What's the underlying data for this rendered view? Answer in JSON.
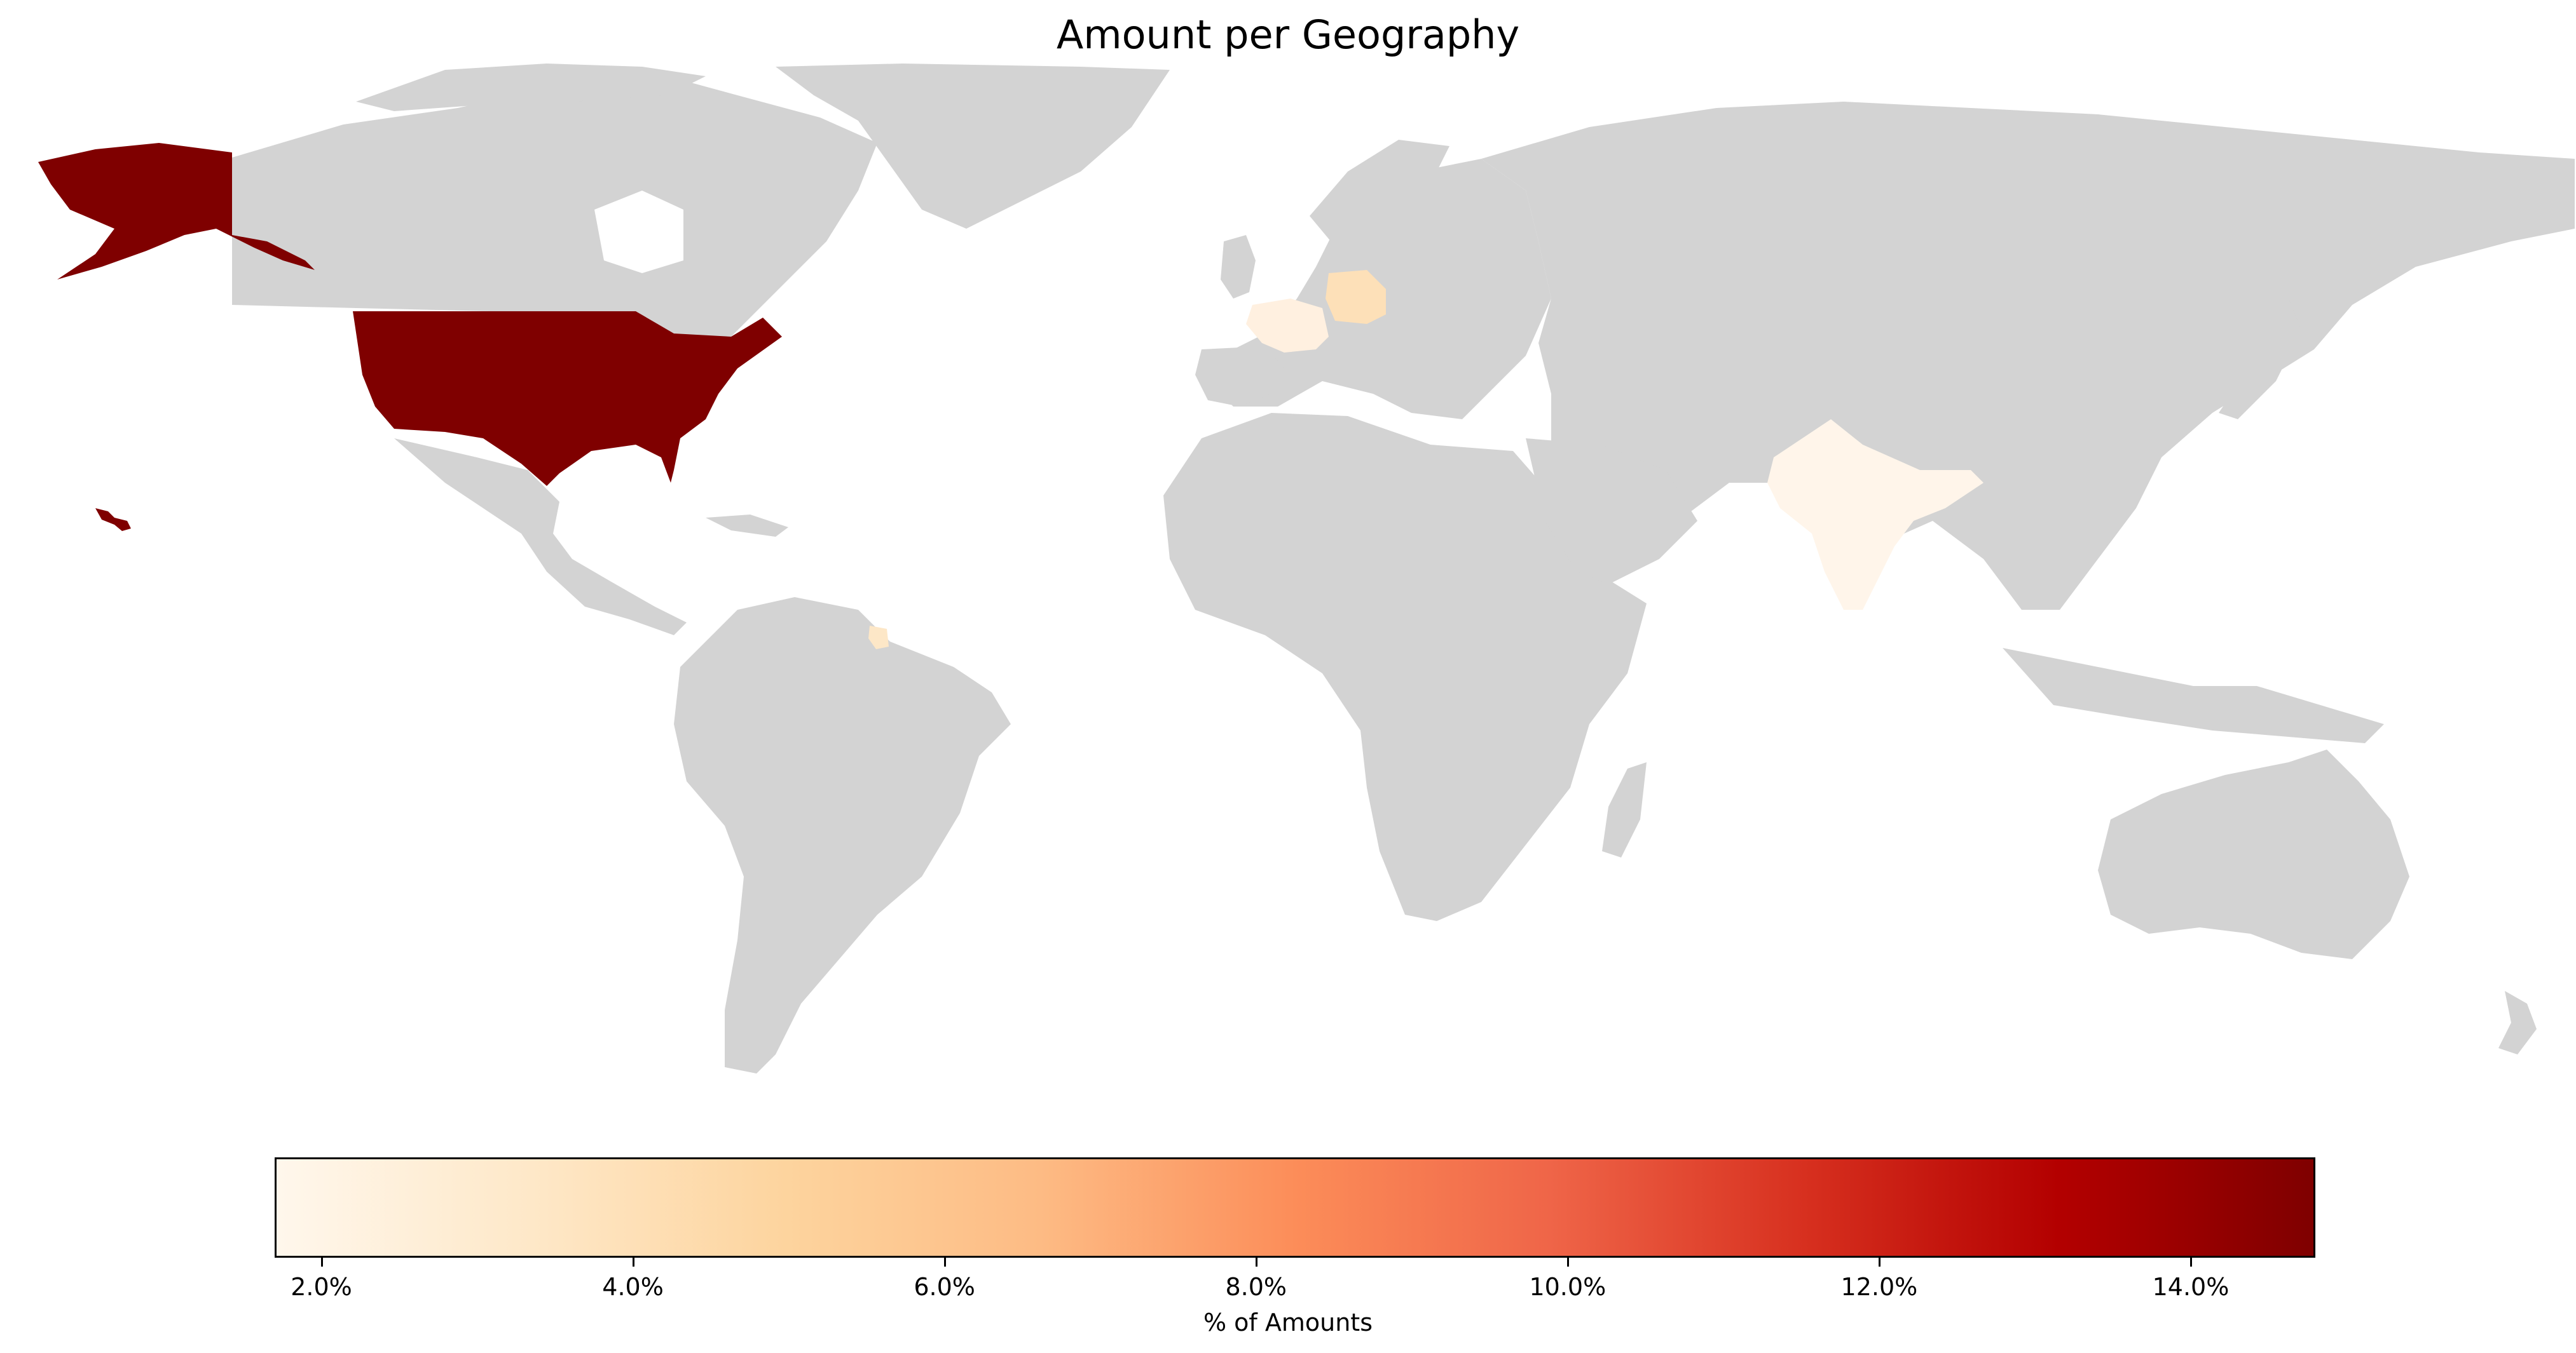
{
  "title": "Amount per Geography",
  "map_data": {
    "type": "choropleth",
    "no_data_color": "#d3d3d3",
    "colormap": "OrRd",
    "value_range": [
      1.7,
      14.8
    ],
    "regions": [
      {
        "name": "United States",
        "value": 14.8,
        "color": "#7f0000"
      },
      {
        "name": "Germany",
        "value": 3.8,
        "color": "#fde0b8"
      },
      {
        "name": "France",
        "value": 2.2,
        "color": "#fff0e0"
      },
      {
        "name": "India",
        "value": 1.8,
        "color": "#fff5ea"
      },
      {
        "name": "Suriname",
        "value": 3.3,
        "color": "#fde7c7"
      }
    ]
  },
  "colorbar": {
    "label": "% of Amounts",
    "ticks": [
      "2.0%",
      "4.0%",
      "6.0%",
      "8.0%",
      "10.0%",
      "12.0%",
      "14.0%"
    ],
    "tick_values": [
      2,
      4,
      6,
      8,
      10,
      12,
      14
    ],
    "min": 1.7,
    "max": 14.8,
    "gradient": [
      "#fff7ec",
      "#fee8c8",
      "#fdd49e",
      "#fdbb84",
      "#fc8d59",
      "#ef6548",
      "#d7301f",
      "#b30000",
      "#7f0000"
    ]
  }
}
